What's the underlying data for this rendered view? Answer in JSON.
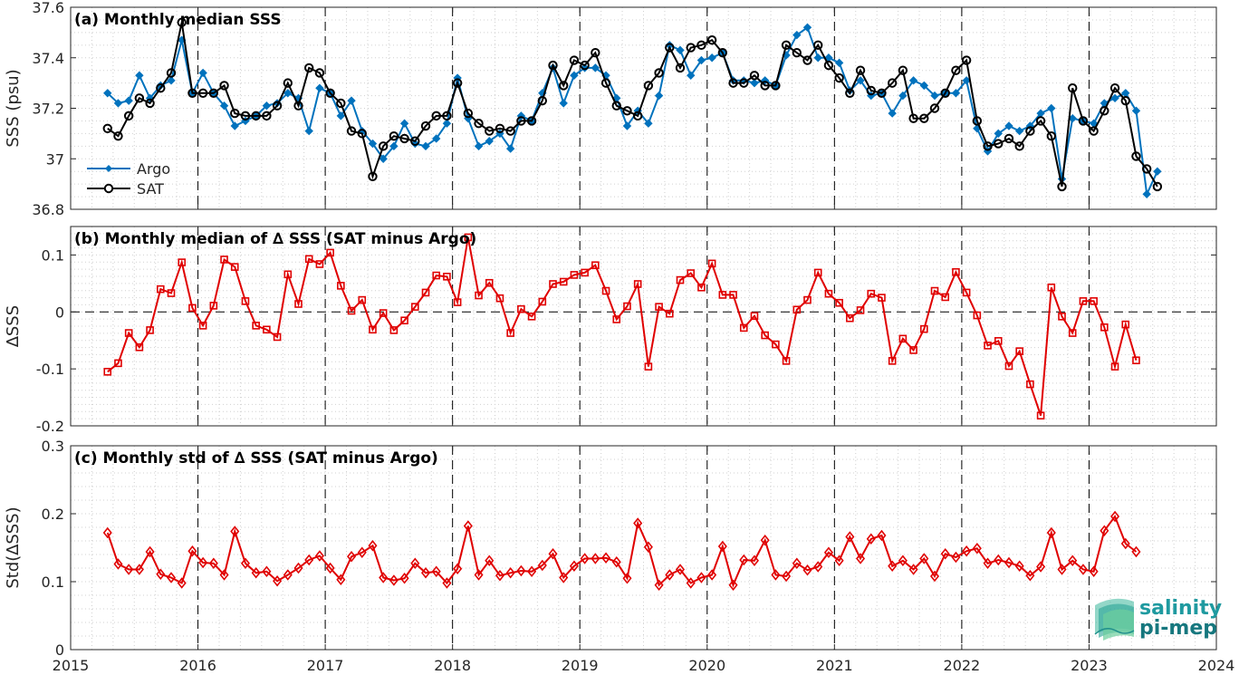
{
  "colors": {
    "argo": "#0072BD",
    "sat": "#000000",
    "delta": "#e00000",
    "grid": "#d0d0d0",
    "logo": "#1f9aa0"
  },
  "logo": {
    "line1": "salinity",
    "line2": "pi-mep"
  },
  "x_ticks": [
    "2015",
    "2016",
    "2017",
    "2018",
    "2019",
    "2020",
    "2021",
    "2022",
    "2023",
    "2024"
  ],
  "chart_data": [
    {
      "type": "line",
      "title": "(a) Monthly median SSS",
      "ylabel": "SSS (psu)",
      "xlim": [
        2015,
        2024
      ],
      "ylim": [
        36.8,
        37.6
      ],
      "yticks": [
        "36.8",
        "37",
        "37.2",
        "37.4",
        "37.6"
      ],
      "legend": "top-left-lower",
      "x_start": 2015.29,
      "x_step": 0.0833,
      "series": [
        {
          "name": "Argo",
          "values": [
            37.26,
            37.22,
            37.23,
            37.33,
            37.24,
            37.29,
            37.31,
            37.47,
            37.26,
            37.34,
            37.26,
            37.21,
            37.13,
            37.15,
            37.17,
            37.21,
            37.22,
            37.26,
            37.24,
            37.11,
            37.28,
            37.26,
            37.17,
            37.23,
            37.11,
            37.06,
            37.0,
            37.05,
            37.14,
            37.06,
            37.05,
            37.08,
            37.14,
            37.32,
            37.16,
            37.05,
            37.07,
            37.1,
            37.04,
            37.17,
            37.15,
            37.26,
            37.36,
            37.22,
            37.33,
            37.36,
            37.36,
            37.33,
            37.24,
            37.13,
            37.19,
            37.14,
            37.25,
            37.45,
            37.43,
            37.33,
            37.39,
            37.4,
            37.42,
            37.31,
            37.31,
            37.3,
            37.31,
            37.29,
            37.41,
            37.49,
            37.52,
            37.4,
            37.4,
            37.38,
            37.27,
            37.31,
            37.25,
            37.26,
            37.18,
            37.25,
            37.31,
            37.29,
            37.25,
            37.26,
            37.26,
            37.31,
            37.12,
            37.03,
            37.1,
            37.13,
            37.11,
            37.13,
            37.18,
            37.2,
            36.92,
            37.16,
            37.15,
            37.14,
            37.22,
            37.24,
            37.26,
            37.19,
            36.86,
            36.95
          ]
        },
        {
          "name": "SAT",
          "values": [
            37.12,
            37.09,
            37.17,
            37.24,
            37.22,
            37.28,
            37.34,
            37.54,
            37.26,
            37.26,
            37.26,
            37.29,
            37.18,
            37.17,
            37.17,
            37.17,
            37.21,
            37.3,
            37.21,
            37.36,
            37.34,
            37.26,
            37.22,
            37.11,
            37.1,
            36.93,
            37.05,
            37.09,
            37.08,
            37.07,
            37.13,
            37.17,
            37.17,
            37.3,
            37.18,
            37.14,
            37.11,
            37.12,
            37.11,
            37.15,
            37.15,
            37.23,
            37.37,
            37.29,
            37.39,
            37.37,
            37.42,
            37.3,
            37.21,
            37.19,
            37.17,
            37.29,
            37.34,
            37.44,
            37.36,
            37.44,
            37.45,
            37.47,
            37.42,
            37.3,
            37.3,
            37.33,
            37.29,
            37.29,
            37.45,
            37.42,
            37.39,
            37.45,
            37.37,
            37.32,
            37.26,
            37.35,
            37.27,
            37.26,
            37.3,
            37.35,
            37.16,
            37.16,
            37.2,
            37.26,
            37.35,
            37.39,
            37.15,
            37.05,
            37.06,
            37.08,
            37.05,
            37.11,
            37.15,
            37.09,
            36.89,
            37.28,
            37.15,
            37.11,
            37.19,
            37.28,
            37.23,
            37.01,
            36.96,
            36.89
          ]
        }
      ]
    },
    {
      "type": "line",
      "title": "(b) Monthly median of ∆ SSS (SAT minus Argo)",
      "ylabel": "∆SSS",
      "xlim": [
        2015,
        2024
      ],
      "ylim": [
        -0.2,
        0.15
      ],
      "yticks": [
        "-0.2",
        "-0.1",
        "0",
        "0.1"
      ],
      "zero_line": true,
      "x_start": 2015.29,
      "x_step": 0.0833,
      "series": [
        {
          "name": "",
          "values": [
            -0.105,
            -0.09,
            -0.037,
            -0.062,
            -0.032,
            0.04,
            0.033,
            0.087,
            0.007,
            -0.024,
            0.011,
            0.092,
            0.079,
            0.019,
            -0.024,
            -0.031,
            -0.044,
            0.066,
            0.014,
            0.093,
            0.084,
            0.104,
            0.046,
            0.002,
            0.021,
            -0.031,
            -0.002,
            -0.032,
            -0.015,
            0.009,
            0.034,
            0.064,
            0.062,
            0.017,
            0.131,
            0.029,
            0.051,
            0.024,
            -0.037,
            0.005,
            -0.008,
            0.018,
            0.049,
            0.053,
            0.065,
            0.069,
            0.082,
            0.037,
            -0.013,
            0.01,
            0.049,
            -0.096,
            0.009,
            -0.003,
            0.056,
            0.068,
            0.043,
            0.085,
            0.03,
            0.03,
            -0.028,
            -0.007,
            -0.041,
            -0.057,
            -0.086,
            0.004,
            0.021,
            0.069,
            0.032,
            0.016,
            -0.011,
            0.003,
            0.032,
            0.025,
            -0.086,
            -0.047,
            -0.067,
            -0.03,
            0.037,
            0.026,
            0.07,
            0.034,
            -0.006,
            -0.059,
            -0.051,
            -0.095,
            -0.069,
            -0.127,
            -0.182,
            0.043,
            -0.008,
            -0.037,
            0.019,
            0.019,
            -0.027,
            -0.096,
            -0.022,
            -0.085
          ]
        }
      ]
    },
    {
      "type": "line",
      "title": "(c) Monthly std of ∆ SSS (SAT minus Argo)",
      "ylabel": "Std(∆SSS)",
      "xlim": [
        2015,
        2024
      ],
      "ylim": [
        0,
        0.3
      ],
      "yticks": [
        "0",
        "0.1",
        "0.2",
        "0.3"
      ],
      "x_start": 2015.29,
      "x_step": 0.0833,
      "series": [
        {
          "name": "",
          "values": [
            0.172,
            0.126,
            0.118,
            0.118,
            0.144,
            0.111,
            0.106,
            0.098,
            0.145,
            0.128,
            0.127,
            0.11,
            0.174,
            0.127,
            0.113,
            0.115,
            0.101,
            0.11,
            0.12,
            0.132,
            0.138,
            0.12,
            0.103,
            0.137,
            0.143,
            0.153,
            0.106,
            0.102,
            0.105,
            0.127,
            0.113,
            0.115,
            0.098,
            0.119,
            0.182,
            0.11,
            0.131,
            0.109,
            0.113,
            0.116,
            0.115,
            0.124,
            0.141,
            0.106,
            0.123,
            0.134,
            0.134,
            0.135,
            0.129,
            0.105,
            0.186,
            0.151,
            0.095,
            0.11,
            0.118,
            0.098,
            0.106,
            0.11,
            0.152,
            0.095,
            0.132,
            0.131,
            0.161,
            0.11,
            0.108,
            0.127,
            0.117,
            0.122,
            0.143,
            0.131,
            0.166,
            0.134,
            0.163,
            0.168,
            0.123,
            0.131,
            0.118,
            0.134,
            0.108,
            0.141,
            0.136,
            0.145,
            0.149,
            0.127,
            0.132,
            0.128,
            0.123,
            0.109,
            0.122,
            0.172,
            0.118,
            0.131,
            0.118,
            0.115,
            0.175,
            0.196,
            0.156,
            0.144
          ]
        }
      ]
    }
  ]
}
